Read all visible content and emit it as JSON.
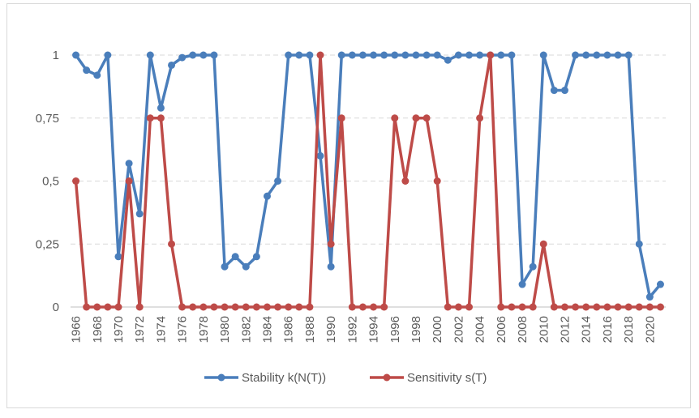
{
  "chart_data": {
    "type": "line",
    "title": "",
    "xlabel": "",
    "ylabel": "",
    "ylim": [
      0,
      1
    ],
    "y_ticks": [
      0,
      0.25,
      0.5,
      0.75,
      1
    ],
    "y_tick_labels": [
      "0",
      "0,25",
      "0,5",
      "0,75",
      "1"
    ],
    "x_tick_labels": [
      "1966",
      "1968",
      "1970",
      "1972",
      "1974",
      "1976",
      "1978",
      "1980",
      "1982",
      "1984",
      "1986",
      "1988",
      "1990",
      "1992",
      "1994",
      "1996",
      "1998",
      "2000",
      "2002",
      "2004",
      "2006",
      "2008",
      "2010",
      "2012",
      "2014",
      "2016",
      "2018",
      "2020"
    ],
    "grid": "horizontal dashed",
    "legend_position": "bottom",
    "x": [
      1966,
      1967,
      1968,
      1969,
      1970,
      1971,
      1972,
      1973,
      1974,
      1975,
      1976,
      1977,
      1978,
      1979,
      1980,
      1981,
      1982,
      1983,
      1984,
      1985,
      1986,
      1987,
      1988,
      1989,
      1990,
      1991,
      1992,
      1993,
      1994,
      1995,
      1996,
      1997,
      1998,
      1999,
      2000,
      2001,
      2002,
      2003,
      2004,
      2005,
      2006,
      2007,
      2008,
      2009,
      2010,
      2011,
      2012,
      2013,
      2014,
      2015,
      2016,
      2017,
      2018,
      2019,
      2020,
      2021
    ],
    "series": [
      {
        "name": "Stability k(N(T))",
        "color": "#4a7ebb",
        "values": [
          1,
          0.94,
          0.92,
          1,
          0.2,
          0.57,
          0.37,
          1,
          0.79,
          0.96,
          0.99,
          1,
          1,
          1,
          0.16,
          0.2,
          0.16,
          0.2,
          0.44,
          0.5,
          1,
          1,
          1,
          0.6,
          0.16,
          1,
          1,
          1,
          1,
          1,
          1,
          1,
          1,
          1,
          1,
          0.98,
          1,
          1,
          1,
          1,
          1,
          1,
          0.09,
          0.16,
          1,
          0.86,
          0.86,
          1,
          1,
          1,
          1,
          1,
          1,
          0.25,
          0.04,
          0.09
        ]
      },
      {
        "name": "Sensitivity s(T)",
        "color": "#be4b48",
        "values": [
          0.5,
          0,
          0,
          0,
          0,
          0.5,
          0,
          0.75,
          0.75,
          0.25,
          0,
          0,
          0,
          0,
          0,
          0,
          0,
          0,
          0,
          0,
          0,
          0,
          0,
          1,
          0.25,
          0.75,
          0,
          0,
          0,
          0,
          0.75,
          0.5,
          0.75,
          0.75,
          0.5,
          0,
          0,
          0,
          0.75,
          1,
          0,
          0,
          0,
          0,
          0.25,
          0,
          0,
          0,
          0,
          0,
          0,
          0,
          0,
          0,
          0,
          0
        ]
      }
    ]
  }
}
